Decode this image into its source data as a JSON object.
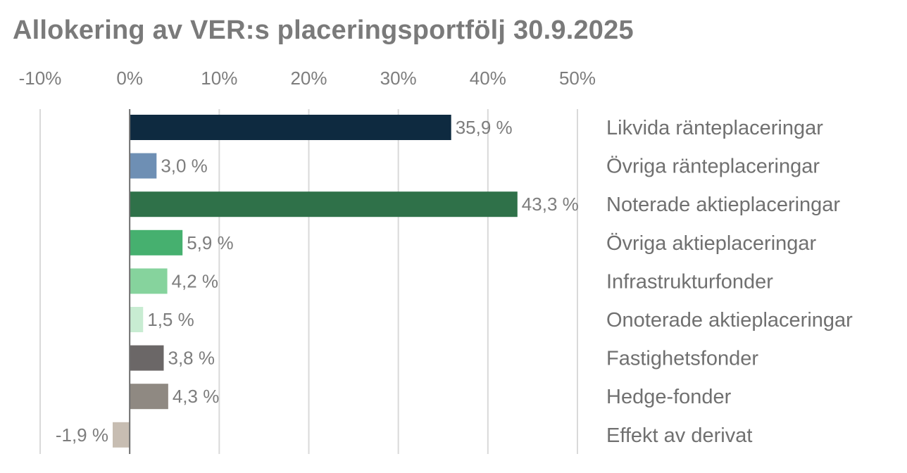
{
  "chart_data": {
    "type": "bar",
    "orientation": "horizontal",
    "title": "Allokering av VER:s placeringsportfölj 30.9.2025",
    "xlim": [
      -10,
      50
    ],
    "x_ticks": [
      -10,
      0,
      10,
      20,
      30,
      40,
      50
    ],
    "x_tick_labels": [
      "-10%",
      "0%",
      "10%",
      "20%",
      "30%",
      "40%",
      "50%"
    ],
    "grid": "vertical",
    "axis_position": "top",
    "categories": [
      "Likvida ränteplaceringar",
      "Övriga ränteplaceringar",
      "Noterade aktieplaceringar",
      "Övriga aktieplaceringar",
      "Infrastrukturfonder",
      "Onoterade aktieplaceringar",
      "Fastighetsfonder",
      "Hedge-fonder",
      "Effekt av derivat"
    ],
    "values": [
      35.9,
      3.0,
      43.3,
      5.9,
      4.2,
      1.5,
      3.8,
      4.3,
      -1.9
    ],
    "value_labels": [
      "35,9 %",
      "3,0 %",
      "43,3 %",
      "5,9 %",
      "4,2 %",
      "1,5 %",
      "3,8 %",
      "4,3 %",
      "-1,9 %"
    ],
    "colors": [
      "#0e2a40",
      "#6e8fb4",
      "#2f7149",
      "#46b06f",
      "#86d39d",
      "#c8ecd2",
      "#6b6767",
      "#8f8982",
      "#c7bdb2"
    ]
  }
}
